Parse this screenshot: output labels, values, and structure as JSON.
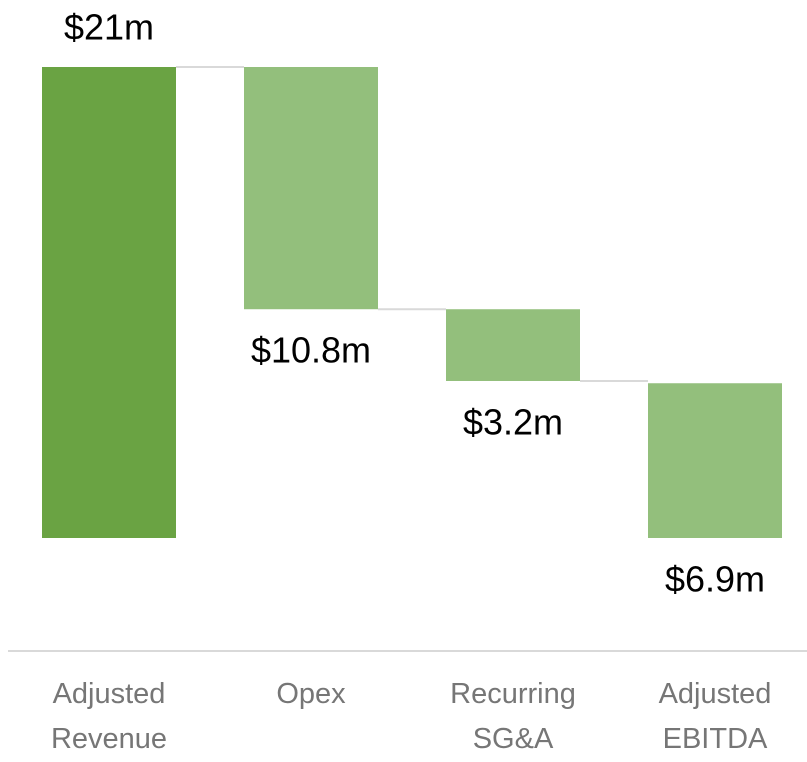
{
  "chart_data": {
    "type": "waterfall",
    "categories": [
      "Adjusted Revenue",
      "Opex",
      "Recurring SG&A",
      "Adjusted EBITDA"
    ],
    "values": [
      21,
      10.8,
      3.2,
      6.9
    ],
    "value_labels": [
      "$21m",
      "$10.8m",
      "$3.2m",
      "$6.9m"
    ],
    "measure": [
      "total",
      "decrease",
      "decrease",
      "total"
    ],
    "colors": [
      "#6aa343",
      "#93bf7c",
      "#93bf7c",
      "#93bf7c"
    ]
  }
}
